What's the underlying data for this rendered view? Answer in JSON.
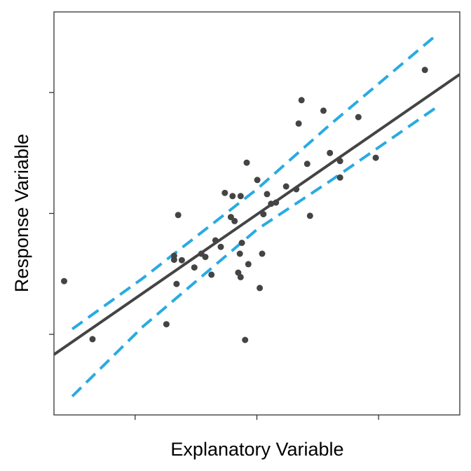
{
  "chart_data": {
    "type": "scatter",
    "title": "",
    "xlabel": "Explanatory Variable",
    "ylabel": "Response Variable",
    "x_tick_labels": [],
    "y_tick_labels": [],
    "xlim": [
      0,
      100
    ],
    "ylim": [
      0,
      100
    ],
    "x_ticks": [
      20,
      50,
      80
    ],
    "y_ticks": [
      20,
      50,
      80
    ],
    "grid": false,
    "legend": "none",
    "colors": {
      "points": "#444444",
      "fit_line": "#444444",
      "bands": "#29abe2"
    },
    "points": [
      [
        2.5,
        33.2
      ],
      [
        9.5,
        18.8
      ],
      [
        27.7,
        22.5
      ],
      [
        30.2,
        32.5
      ],
      [
        29.6,
        39.5
      ],
      [
        29.6,
        38.5
      ],
      [
        30.6,
        49.6
      ],
      [
        31.5,
        38.4
      ],
      [
        34.6,
        36.6
      ],
      [
        36.3,
        40.0
      ],
      [
        37.3,
        39.2
      ],
      [
        38.8,
        34.8
      ],
      [
        39.8,
        43.3
      ],
      [
        41.1,
        41.7
      ],
      [
        42.1,
        55.1
      ],
      [
        43.6,
        49.1
      ],
      [
        44.5,
        48.1
      ],
      [
        44.0,
        54.3
      ],
      [
        46.0,
        54.3
      ],
      [
        45.8,
        40.0
      ],
      [
        45.4,
        35.3
      ],
      [
        46.0,
        34.2
      ],
      [
        46.3,
        42.7
      ],
      [
        47.5,
        62.6
      ],
      [
        47.1,
        18.6
      ],
      [
        47.9,
        37.4
      ],
      [
        50.1,
        58.3
      ],
      [
        50.7,
        31.5
      ],
      [
        51.3,
        40.0
      ],
      [
        51.6,
        49.8
      ],
      [
        52.5,
        54.8
      ],
      [
        53.5,
        52.4
      ],
      [
        54.7,
        52.7
      ],
      [
        57.2,
        56.7
      ],
      [
        59.7,
        56.0
      ],
      [
        60.3,
        72.3
      ],
      [
        61.0,
        78.1
      ],
      [
        62.4,
        62.3
      ],
      [
        63.1,
        49.4
      ],
      [
        66.4,
        75.5
      ],
      [
        68.0,
        65.0
      ],
      [
        70.5,
        63.0
      ],
      [
        70.5,
        58.9
      ],
      [
        75.0,
        73.9
      ],
      [
        79.3,
        63.8
      ],
      [
        91.4,
        85.6
      ]
    ],
    "fit_line": [
      [
        0,
        15.0
      ],
      [
        100,
        84.5
      ]
    ],
    "upper_band": [
      [
        4.5,
        21.3
      ],
      [
        22.0,
        34.0
      ],
      [
        50.0,
        56.0
      ],
      [
        68.0,
        72.0
      ],
      [
        94.5,
        94.5
      ]
    ],
    "lower_band": [
      [
        4.5,
        4.6
      ],
      [
        22.0,
        22.0
      ],
      [
        50.0,
        46.0
      ],
      [
        68.0,
        58.0
      ],
      [
        94.5,
        76.5
      ]
    ]
  }
}
